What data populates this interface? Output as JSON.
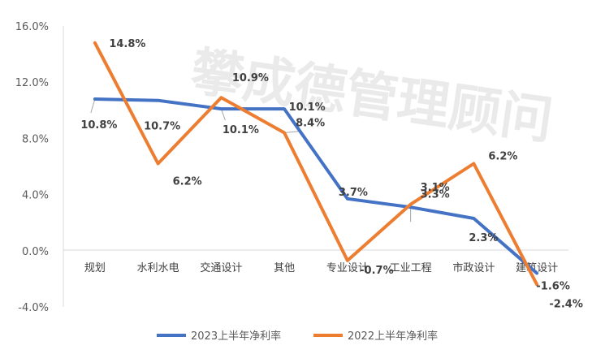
{
  "watermark": "攀成德管理顾问",
  "chart_data": {
    "type": "line",
    "categories": [
      "规划",
      "水利水电",
      "交通设计",
      "其他",
      "专业设计",
      "工业工程",
      "市政设计",
      "建筑设计"
    ],
    "ylim": [
      -4.0,
      16.0
    ],
    "yticks": [
      -4.0,
      0.0,
      4.0,
      8.0,
      12.0,
      16.0
    ],
    "ytick_labels": [
      "-4.0%",
      "0.0%",
      "4.0%",
      "8.0%",
      "12.0%",
      "16.0%"
    ],
    "grid": false,
    "legend_position": "bottom",
    "series": [
      {
        "name": "2023上半年净利率",
        "color": "#4472C4",
        "values": [
          10.8,
          10.7,
          10.1,
          10.1,
          3.7,
          3.1,
          2.3,
          -1.6
        ],
        "labels": [
          "10.8%",
          "10.7%",
          "10.1%",
          "10.1%",
          "3.7%",
          "3.1%",
          "2.3%",
          "-1.6%"
        ]
      },
      {
        "name": "2022上半年净利率",
        "color": "#ED7D31",
        "values": [
          14.8,
          6.2,
          10.9,
          8.4,
          -0.7,
          3.3,
          6.2,
          -2.4
        ],
        "labels": [
          "14.8%",
          "6.2%",
          "10.9%",
          "8.4%",
          "-0.7%",
          "3.3%",
          "6.2%",
          "-2.4%"
        ]
      }
    ]
  }
}
